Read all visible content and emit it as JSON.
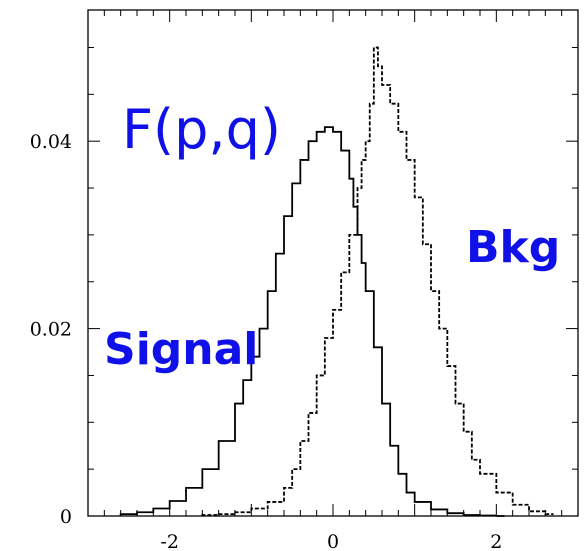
{
  "chart_data": {
    "type": "step",
    "title": "",
    "xlabel": "",
    "ylabel": "",
    "xlim": [
      -3,
      3
    ],
    "ylim": [
      0,
      0.054
    ],
    "grid": false,
    "x_ticks": [
      -2,
      0,
      2
    ],
    "x_tick_labels": [
      "-2",
      "0",
      "2"
    ],
    "y_ticks": [
      0,
      0.02,
      0.04
    ],
    "y_tick_labels": [
      "0",
      "0.02",
      "0.04"
    ],
    "annotations": [
      {
        "key": "formula",
        "text": "F(p,q)",
        "color": "#1010e8"
      },
      {
        "key": "signal",
        "text": "Signal",
        "color": "#1010e8"
      },
      {
        "key": "bkg",
        "text": "Bkg",
        "color": "#1010e8"
      }
    ],
    "series": [
      {
        "style": "solid",
        "color": "#000000",
        "x": [
          -2.6,
          -2.4,
          -2.2,
          -2.0,
          -1.8,
          -1.6,
          -1.4,
          -1.2,
          -1.1,
          -1.0,
          -0.9,
          -0.8,
          -0.7,
          -0.6,
          -0.5,
          -0.4,
          -0.3,
          -0.2,
          -0.1,
          0.0,
          0.1,
          0.2,
          0.25,
          0.3,
          0.35,
          0.4,
          0.5,
          0.6,
          0.7,
          0.8,
          0.9,
          1.0,
          1.2,
          1.4,
          1.6,
          1.8,
          2.0
        ],
        "y": [
          0.0002,
          0.0004,
          0.0008,
          0.0016,
          0.003,
          0.005,
          0.008,
          0.012,
          0.0145,
          0.017,
          0.02,
          0.024,
          0.028,
          0.032,
          0.0355,
          0.038,
          0.04,
          0.041,
          0.0415,
          0.041,
          0.039,
          0.036,
          0.033,
          0.03,
          0.027,
          0.024,
          0.018,
          0.012,
          0.0075,
          0.0045,
          0.0025,
          0.0015,
          0.0007,
          0.0003,
          0.0001,
          5e-05,
          0.0
        ]
      },
      {
        "style": "dashed",
        "color": "#000000",
        "x": [
          -1.6,
          -1.4,
          -1.2,
          -1.0,
          -0.8,
          -0.6,
          -0.5,
          -0.4,
          -0.3,
          -0.2,
          -0.1,
          0.0,
          0.1,
          0.2,
          0.3,
          0.35,
          0.4,
          0.45,
          0.5,
          0.55,
          0.6,
          0.7,
          0.8,
          0.9,
          1.0,
          1.1,
          1.2,
          1.3,
          1.4,
          1.5,
          1.6,
          1.7,
          1.8,
          2.0,
          2.2,
          2.4,
          2.6
        ],
        "y": [
          0.0001,
          0.0002,
          0.0004,
          0.0008,
          0.0015,
          0.003,
          0.005,
          0.008,
          0.011,
          0.015,
          0.019,
          0.022,
          0.026,
          0.03,
          0.035,
          0.038,
          0.04,
          0.044,
          0.05,
          0.048,
          0.046,
          0.044,
          0.041,
          0.038,
          0.034,
          0.029,
          0.024,
          0.02,
          0.016,
          0.012,
          0.009,
          0.006,
          0.0045,
          0.0025,
          0.0012,
          0.0005,
          0.0002
        ]
      }
    ]
  }
}
